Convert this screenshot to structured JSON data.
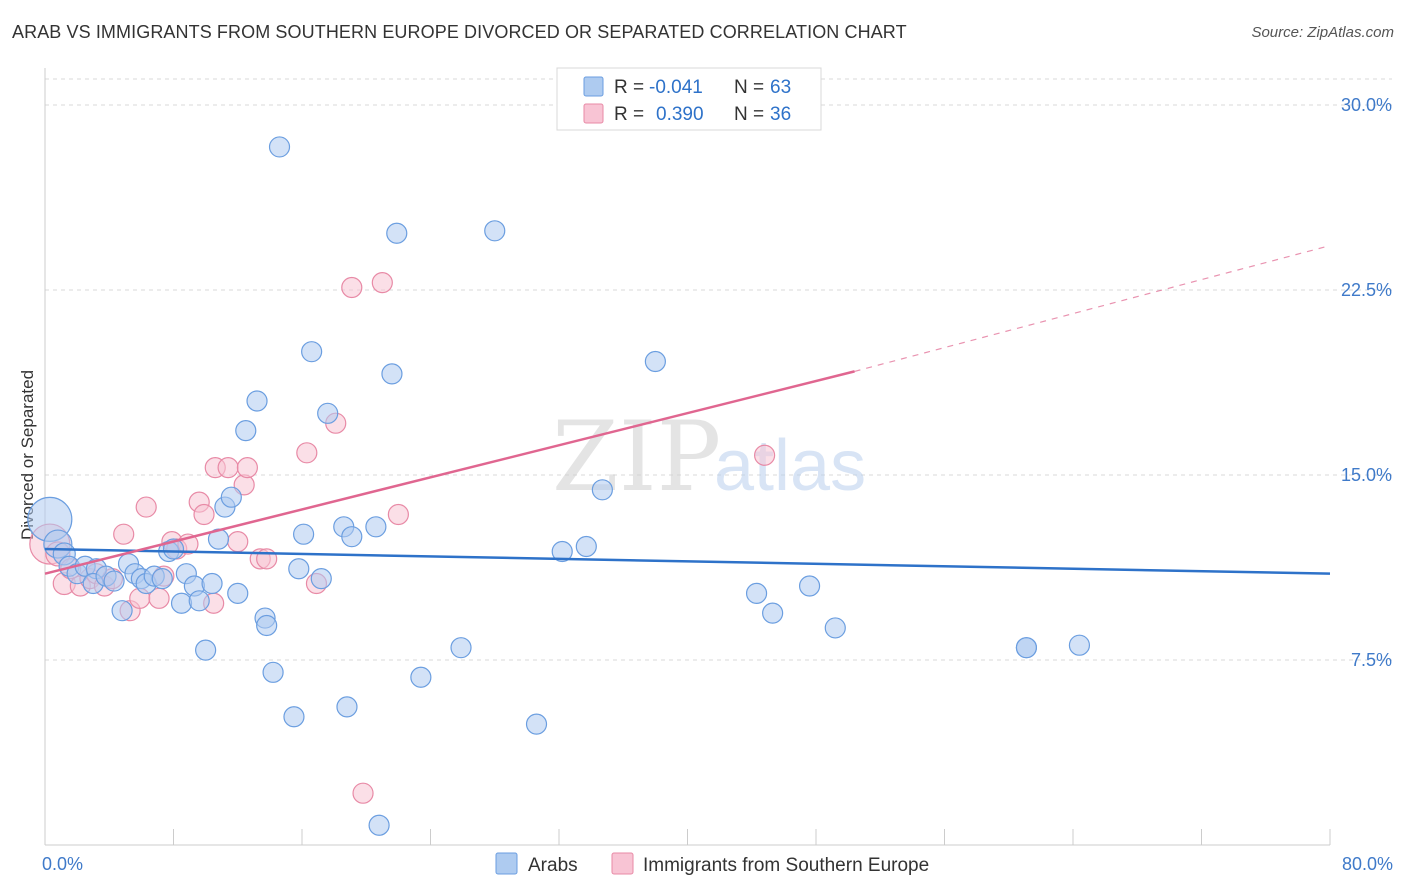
{
  "header": {
    "title": "ARAB VS IMMIGRANTS FROM SOUTHERN EUROPE DIVORCED OR SEPARATED CORRELATION CHART",
    "source": "Source: ZipAtlas.com"
  },
  "watermark": {
    "zip": "ZIP",
    "atlas": "atlas"
  },
  "colors": {
    "arabs_fill": "#aecbf0",
    "arabs_stroke": "#6b9ee0",
    "arabs_line": "#2e72c9",
    "se_fill": "#f8c4d4",
    "se_stroke": "#e88aa6",
    "se_line": "#e06690",
    "axis_text": "#3f7ac9",
    "grid": "#d8d8d8"
  },
  "legend": {
    "row1": {
      "r_label": "R =",
      "r_value": "-0.041",
      "n_label": "N =",
      "n_value": "63"
    },
    "row2": {
      "r_label": "R =",
      "r_value": "0.390",
      "n_label": "N =",
      "n_value": "36"
    }
  },
  "chart_data": {
    "type": "scatter",
    "title": "ARAB VS IMMIGRANTS FROM SOUTHERN EUROPE DIVORCED OR SEPARATED CORRELATION CHART",
    "xlabel": "",
    "ylabel": "Divorced or Separated",
    "xlim": [
      0,
      80
    ],
    "ylim": [
      0,
      31.5
    ],
    "x_tick_labels": [
      "0.0%",
      "80.0%"
    ],
    "y_ticks": [
      7.5,
      15.0,
      22.5,
      30.0
    ],
    "y_tick_labels": [
      "7.5%",
      "15.0%",
      "22.5%",
      "30.0%"
    ],
    "grid": true,
    "series": [
      {
        "name": "Arabs",
        "r": -0.041,
        "n": 63,
        "trend": {
          "x0": 0,
          "y0": 12.0,
          "x1": 80,
          "y1": 11.0
        },
        "points": [
          [
            0.3,
            13.2,
            22
          ],
          [
            0.8,
            12.2,
            14
          ],
          [
            1.2,
            11.8,
            11
          ],
          [
            1.5,
            11.3,
            10
          ],
          [
            2.0,
            11.0,
            10
          ],
          [
            2.5,
            11.3,
            10
          ],
          [
            3.2,
            11.2,
            10
          ],
          [
            3.0,
            10.6,
            10
          ],
          [
            3.8,
            10.9,
            10
          ],
          [
            4.3,
            10.7,
            10
          ],
          [
            4.8,
            9.5,
            10
          ],
          [
            5.2,
            11.4,
            10
          ],
          [
            5.6,
            11.0,
            10
          ],
          [
            6.0,
            10.8,
            10
          ],
          [
            6.3,
            10.6,
            10
          ],
          [
            6.8,
            10.9,
            10
          ],
          [
            7.3,
            10.8,
            10
          ],
          [
            7.7,
            11.9,
            10
          ],
          [
            8.0,
            12.0,
            10
          ],
          [
            8.5,
            9.8,
            10
          ],
          [
            8.8,
            11.0,
            10
          ],
          [
            9.3,
            10.5,
            10
          ],
          [
            9.6,
            9.9,
            10
          ],
          [
            10.0,
            7.9,
            10
          ],
          [
            10.4,
            10.6,
            10
          ],
          [
            10.8,
            12.4,
            10
          ],
          [
            11.2,
            13.7,
            10
          ],
          [
            11.6,
            14.1,
            10
          ],
          [
            12.0,
            10.2,
            10
          ],
          [
            12.5,
            16.8,
            10
          ],
          [
            13.2,
            18.0,
            10
          ],
          [
            13.7,
            9.2,
            10
          ],
          [
            13.8,
            8.9,
            10
          ],
          [
            14.2,
            7.0,
            10
          ],
          [
            14.6,
            28.3,
            10
          ],
          [
            15.5,
            5.2,
            10
          ],
          [
            15.8,
            11.2,
            10
          ],
          [
            16.1,
            12.6,
            10
          ],
          [
            16.6,
            20.0,
            10
          ],
          [
            17.2,
            10.8,
            10
          ],
          [
            17.6,
            17.5,
            10
          ],
          [
            18.6,
            12.9,
            10
          ],
          [
            18.8,
            5.6,
            10
          ],
          [
            19.1,
            12.5,
            10
          ],
          [
            20.6,
            12.9,
            10
          ],
          [
            20.8,
            0.8,
            10
          ],
          [
            21.6,
            19.1,
            10
          ],
          [
            21.9,
            24.8,
            10
          ],
          [
            23.4,
            6.8,
            10
          ],
          [
            25.9,
            8.0,
            10
          ],
          [
            28.0,
            24.9,
            10
          ],
          [
            30.6,
            4.9,
            10
          ],
          [
            32.2,
            11.9,
            10
          ],
          [
            33.7,
            12.1,
            10
          ],
          [
            34.7,
            14.4,
            10
          ],
          [
            38.0,
            19.6,
            10
          ],
          [
            44.3,
            10.2,
            10
          ],
          [
            45.3,
            9.4,
            10
          ],
          [
            47.6,
            10.5,
            10
          ],
          [
            49.2,
            8.8,
            10
          ],
          [
            61.1,
            8.0,
            10
          ],
          [
            64.4,
            8.1,
            10
          ],
          [
            61.1,
            8.0,
            10
          ]
        ]
      },
      {
        "name": "Immigrants from Southern Europe",
        "r": 0.39,
        "n": 36,
        "trend": {
          "x0": 0,
          "y0": 11.0,
          "x1": 50.4,
          "y1": 19.2,
          "dash_to": {
            "x": 80,
            "y": 24.3
          }
        },
        "points": [
          [
            0.3,
            12.2,
            20
          ],
          [
            0.8,
            11.8,
            12
          ],
          [
            1.2,
            10.6,
            11
          ],
          [
            1.6,
            11.2,
            10
          ],
          [
            2.2,
            10.5,
            10
          ],
          [
            2.8,
            10.8,
            10
          ],
          [
            3.2,
            11.0,
            10
          ],
          [
            3.7,
            10.5,
            10
          ],
          [
            4.2,
            10.8,
            10
          ],
          [
            4.9,
            12.6,
            10
          ],
          [
            5.3,
            9.5,
            10
          ],
          [
            5.9,
            10.0,
            10
          ],
          [
            6.3,
            13.7,
            10
          ],
          [
            7.1,
            10.0,
            10
          ],
          [
            7.4,
            10.9,
            10
          ],
          [
            7.9,
            12.3,
            10
          ],
          [
            8.2,
            12.0,
            10
          ],
          [
            8.9,
            12.2,
            10
          ],
          [
            9.6,
            13.9,
            10
          ],
          [
            9.9,
            13.4,
            10
          ],
          [
            10.5,
            9.8,
            10
          ],
          [
            10.6,
            15.3,
            10
          ],
          [
            11.4,
            15.3,
            10
          ],
          [
            12.0,
            12.3,
            10
          ],
          [
            12.4,
            14.6,
            10
          ],
          [
            12.6,
            15.3,
            10
          ],
          [
            13.4,
            11.6,
            10
          ],
          [
            13.8,
            11.6,
            10
          ],
          [
            16.3,
            15.9,
            10
          ],
          [
            16.9,
            10.6,
            10
          ],
          [
            18.1,
            17.1,
            10
          ],
          [
            19.1,
            22.6,
            10
          ],
          [
            19.8,
            2.1,
            10
          ],
          [
            21.0,
            22.8,
            10
          ],
          [
            22.0,
            13.4,
            10
          ],
          [
            44.8,
            15.8,
            10
          ]
        ]
      }
    ]
  },
  "bottom_legend": {
    "arabs": "Arabs",
    "se": "Immigrants from Southern Europe"
  }
}
